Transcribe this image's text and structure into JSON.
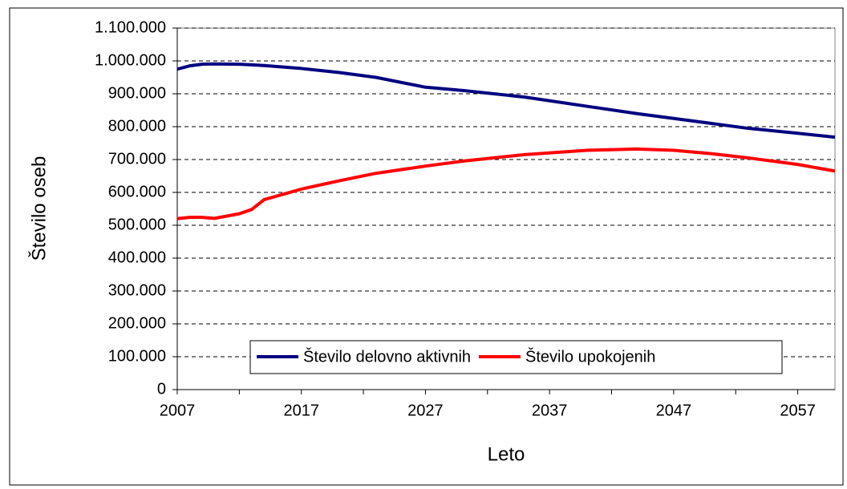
{
  "chart_data": {
    "type": "line",
    "x_label": "Leto",
    "y_label": "Število oseb",
    "x": [
      2007,
      2008,
      2009,
      2010,
      2012,
      2013,
      2014,
      2017,
      2020,
      2023,
      2027,
      2030,
      2035,
      2040,
      2044,
      2047,
      2050,
      2053,
      2057,
      2060
    ],
    "series": [
      {
        "name": "Število delovno aktivnih",
        "color": "#000080",
        "values": [
          975000,
          985000,
          990000,
          991000,
          990000,
          988000,
          986000,
          977000,
          965000,
          950000,
          920000,
          910000,
          890000,
          862000,
          840000,
          825000,
          810000,
          795000,
          780000,
          768000
        ]
      },
      {
        "name": "Število upokojenih",
        "color": "#ff0000",
        "values": [
          520000,
          524000,
          524000,
          521000,
          535000,
          548000,
          578000,
          610000,
          635000,
          658000,
          680000,
          695000,
          715000,
          728000,
          732000,
          728000,
          718000,
          705000,
          685000,
          665000
        ]
      }
    ],
    "xlim": [
      2007,
      2060
    ],
    "xticks": [
      2007,
      2017,
      2027,
      2037,
      2047,
      2057
    ],
    "xminorticks": [
      2012,
      2022,
      2032,
      2042,
      2052
    ],
    "ylim": [
      0,
      1100000
    ],
    "yticks": [
      0,
      {
        "value": 100000,
        "label": "100.000"
      },
      {
        "value": 200000,
        "label": "200.000"
      },
      {
        "value": 300000,
        "label": "300.000"
      },
      {
        "value": 400000,
        "label": "400.000"
      },
      {
        "value": 500000,
        "label": "500.000"
      },
      {
        "value": 600000,
        "label": "600.000"
      },
      {
        "value": 700000,
        "label": "700.000"
      },
      {
        "value": 800000,
        "label": "800.000"
      },
      {
        "value": 900000,
        "label": "900.000"
      },
      {
        "value": 1000000,
        "label": "1.000.000"
      },
      {
        "value": 1100000,
        "label": "1.100.000"
      }
    ],
    "grid": true,
    "legend": "bottom"
  }
}
